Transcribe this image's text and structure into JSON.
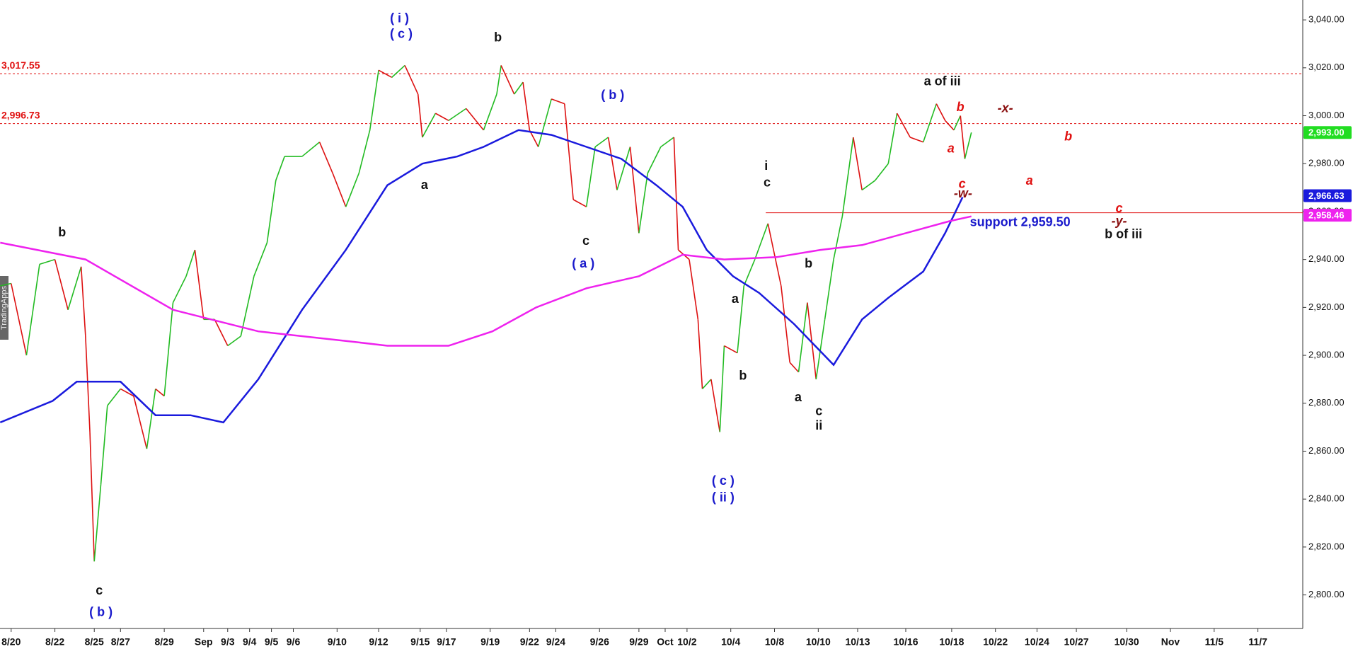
{
  "chart_data": {
    "type": "line",
    "watermark": "TradingApps",
    "xlim": [
      -0.51,
      59.05
    ],
    "ylim": [
      2786,
      3048.3
    ],
    "xticks": [
      {
        "value": 0,
        "label": "8/20"
      },
      {
        "value": 2,
        "label": "8/22"
      },
      {
        "value": 3.8,
        "label": "8/25"
      },
      {
        "value": 5,
        "label": "8/27"
      },
      {
        "value": 7,
        "label": "8/29"
      },
      {
        "value": 8.8,
        "label": "Sep"
      },
      {
        "value": 9.9,
        "label": "9/3"
      },
      {
        "value": 10.9,
        "label": "9/4"
      },
      {
        "value": 11.9,
        "label": "9/5"
      },
      {
        "value": 12.9,
        "label": "9/6"
      },
      {
        "value": 14.9,
        "label": "9/10"
      },
      {
        "value": 16.8,
        "label": "9/12"
      },
      {
        "value": 18.7,
        "label": "9/15"
      },
      {
        "value": 19.9,
        "label": "9/17"
      },
      {
        "value": 21.9,
        "label": "9/19"
      },
      {
        "value": 23.7,
        "label": "9/22"
      },
      {
        "value": 24.9,
        "label": "9/24"
      },
      {
        "value": 26.9,
        "label": "9/26"
      },
      {
        "value": 28.7,
        "label": "9/29"
      },
      {
        "value": 29.9,
        "label": "Oct"
      },
      {
        "value": 30.9,
        "label": "10/2"
      },
      {
        "value": 32.9,
        "label": "10/4"
      },
      {
        "value": 34.9,
        "label": "10/8"
      },
      {
        "value": 36.9,
        "label": "10/10"
      },
      {
        "value": 38.7,
        "label": "10/13"
      },
      {
        "value": 40.9,
        "label": "10/16"
      },
      {
        "value": 43,
        "label": "10/18"
      },
      {
        "value": 45,
        "label": "10/22"
      },
      {
        "value": 46.9,
        "label": "10/24"
      },
      {
        "value": 48.7,
        "label": "10/27"
      },
      {
        "value": 51,
        "label": "10/30"
      },
      {
        "value": 53,
        "label": "Nov"
      },
      {
        "value": 55,
        "label": "11/5"
      },
      {
        "value": 57,
        "label": "11/7"
      }
    ],
    "yticks": [
      {
        "value": 2800,
        "label": "2,800.00"
      },
      {
        "value": 2820,
        "label": "2,820.00"
      },
      {
        "value": 2840,
        "label": "2,840.00"
      },
      {
        "value": 2860,
        "label": "2,860.00"
      },
      {
        "value": 2880,
        "label": "2,880.00"
      },
      {
        "value": 2900,
        "label": "2,900.00"
      },
      {
        "value": 2920,
        "label": "2,920.00"
      },
      {
        "value": 2940,
        "label": "2,940.00"
      },
      {
        "value": 2960,
        "label": "2,960.00"
      },
      {
        "value": 2980,
        "label": "2,980.00"
      },
      {
        "value": 3000,
        "label": "3,000.00"
      },
      {
        "value": 3020,
        "label": "3,020.00"
      },
      {
        "value": 3040,
        "label": "3,040.00"
      }
    ],
    "series": [
      {
        "up_color": "#22bb22",
        "down_color": "#dd1111",
        "x": [
          -0.5,
          0,
          0.7,
          1.3,
          2.0,
          2.6,
          3.2,
          3.4,
          3.6,
          3.8,
          4.1,
          4.4,
          5.0,
          5.6,
          6.2,
          6.6,
          7.0,
          7.4,
          8.0,
          8.4,
          8.8,
          9.3,
          9.9,
          10.5,
          11.1,
          11.7,
          12.1,
          12.5,
          13.3,
          14.1,
          14.7,
          15.3,
          15.9,
          16.4,
          16.8,
          17.4,
          18.0,
          18.6,
          18.8,
          19.4,
          20.0,
          20.8,
          21.6,
          22.2,
          22.4,
          23.0,
          23.4,
          23.7,
          24.1,
          24.7,
          25.3,
          25.7,
          26.3,
          26.7,
          27.3,
          27.7,
          28.3,
          28.7,
          29.1,
          29.7,
          30.3,
          30.5,
          31.0,
          31.4,
          31.6,
          32.0,
          32.4,
          32.6,
          33.2,
          33.5,
          34.0,
          34.6,
          35.2,
          35.6,
          36.0,
          36.4,
          36.8,
          37.2,
          37.6,
          38.0,
          38.5,
          38.9,
          39.5,
          40.1,
          40.5,
          41.1,
          41.7,
          42.3,
          42.7,
          43.1,
          43.4,
          43.6,
          43.9
        ],
        "values": [
          2929,
          2930,
          2900,
          2938,
          2940,
          2919,
          2937,
          2908,
          2868,
          2814,
          2846,
          2879,
          2886,
          2883,
          2861,
          2886,
          2883,
          2922,
          2933,
          2944,
          2915,
          2915,
          2904,
          2908,
          2933,
          2947,
          2973,
          2983,
          2983,
          2989,
          2976,
          2962,
          2976,
          2994,
          3019,
          3016,
          3021,
          3009,
          2991,
          3001,
          2998,
          3003,
          2994,
          3009,
          3021,
          3009,
          3014,
          2994,
          2987,
          3007,
          3005,
          2965,
          2962,
          2987,
          2991,
          2969,
          2987,
          2951,
          2976,
          2987,
          2991,
          2944,
          2940,
          2915,
          2886,
          2890,
          2868,
          2904,
          2901,
          2929,
          2940,
          2955,
          2929,
          2897,
          2893,
          2922,
          2890,
          2915,
          2940,
          2958,
          2991,
          2969,
          2973,
          2980,
          3001,
          2991,
          2989,
          3005,
          2998,
          2994,
          3000,
          2982,
          2993
        ]
      },
      {
        "color": "#1a1add",
        "x": [
          -0.5,
          1.9,
          3.0,
          5.0,
          6.6,
          8.2,
          9.7,
          11.3,
          13.3,
          15.3,
          17.2,
          18.8,
          20.4,
          21.6,
          23.2,
          24.7,
          26.3,
          27.9,
          29.5,
          30.7,
          31.8,
          33.0,
          34.2,
          35.8,
          37.6,
          38.9,
          40.1,
          41.7,
          42.7,
          43.5
        ],
        "values": [
          2872,
          2881,
          2889,
          2889,
          2875,
          2875,
          2872,
          2890,
          2919,
          2944,
          2971,
          2980,
          2983,
          2987,
          2994,
          2992,
          2987,
          2982,
          2971,
          2962,
          2944,
          2933,
          2926,
          2913,
          2896,
          2915,
          2924,
          2935,
          2951,
          2966
        ]
      },
      {
        "color": "#ee22ee",
        "x": [
          -0.5,
          3.4,
          7.4,
          11.3,
          15.3,
          17.2,
          20.0,
          22.0,
          24.0,
          26.3,
          28.7,
          30.7,
          32.6,
          35.0,
          37.0,
          38.9,
          40.9,
          42.9,
          43.9
        ],
        "values": [
          2947,
          2940,
          2919,
          2910,
          2906,
          2904,
          2904,
          2910,
          2920,
          2928,
          2933,
          2942,
          2940,
          2941,
          2944,
          2946,
          2951,
          2956,
          2958
        ]
      }
    ],
    "levels": [
      {
        "value": 3017.55,
        "label": "3,017.55",
        "color": "#e01010",
        "style": "dashed"
      },
      {
        "value": 2996.73,
        "label": "2,996.73",
        "color": "#e01010",
        "style": "dashed"
      },
      {
        "value": 2959.5,
        "label": "support 2,959.50",
        "color": "#e01010",
        "label_color": "#1a1acc",
        "style": "solid",
        "start": 34.5
      }
    ],
    "price_tags": [
      {
        "value": 2993,
        "label": "2,993.00",
        "color": "#22dd22"
      },
      {
        "value": 2966.63,
        "label": "2,966.63",
        "color": "#1a1add"
      },
      {
        "value": 2958.46,
        "label": "2,958.46",
        "color": "#ee22ee"
      }
    ],
    "annotations": [
      {
        "text": "( i )",
        "color": "#1a1acc"
      },
      {
        "text": "( c )",
        "color": "#1a1acc"
      },
      {
        "text": "b",
        "color": "#111111"
      },
      {
        "text": "( b )",
        "color": "#1a1acc"
      },
      {
        "text": "a",
        "color": "#111111"
      },
      {
        "text": "c",
        "color": "#111111"
      },
      {
        "text": "( a )",
        "color": "#1a1acc"
      },
      {
        "text": "b",
        "color": "#111111"
      },
      {
        "text": "c",
        "color": "#111111"
      },
      {
        "text": "( b )",
        "color": "#1a1acc"
      },
      {
        "text": "i",
        "color": "#111111"
      },
      {
        "text": "c",
        "color": "#111111"
      },
      {
        "text": "a",
        "color": "#111111"
      },
      {
        "text": "b",
        "color": "#111111"
      },
      {
        "text": "b",
        "color": "#111111"
      },
      {
        "text": "a",
        "color": "#111111"
      },
      {
        "text": "c",
        "color": "#111111"
      },
      {
        "text": "ii",
        "color": "#111111"
      },
      {
        "text": "( c )",
        "color": "#1a1acc"
      },
      {
        "text": "( ii )",
        "color": "#1a1acc"
      },
      {
        "text": "a of iii",
        "color": "#111111"
      },
      {
        "text": "b",
        "color": "#e01010",
        "italic": true
      },
      {
        "text": "a",
        "color": "#e01010",
        "italic": true
      },
      {
        "text": "c",
        "color": "#e01010",
        "italic": true
      },
      {
        "text": "-w-",
        "color": "#8b1010",
        "italic": true
      },
      {
        "text": "-x-",
        "color": "#8b1010",
        "italic": true
      },
      {
        "text": "b",
        "color": "#e01010",
        "italic": true
      },
      {
        "text": "a",
        "color": "#e01010",
        "italic": true
      },
      {
        "text": "c",
        "color": "#e01010",
        "italic": true
      },
      {
        "text": "-y-",
        "color": "#8b1010",
        "italic": true
      },
      {
        "text": "b of iii",
        "color": "#111111"
      }
    ]
  }
}
